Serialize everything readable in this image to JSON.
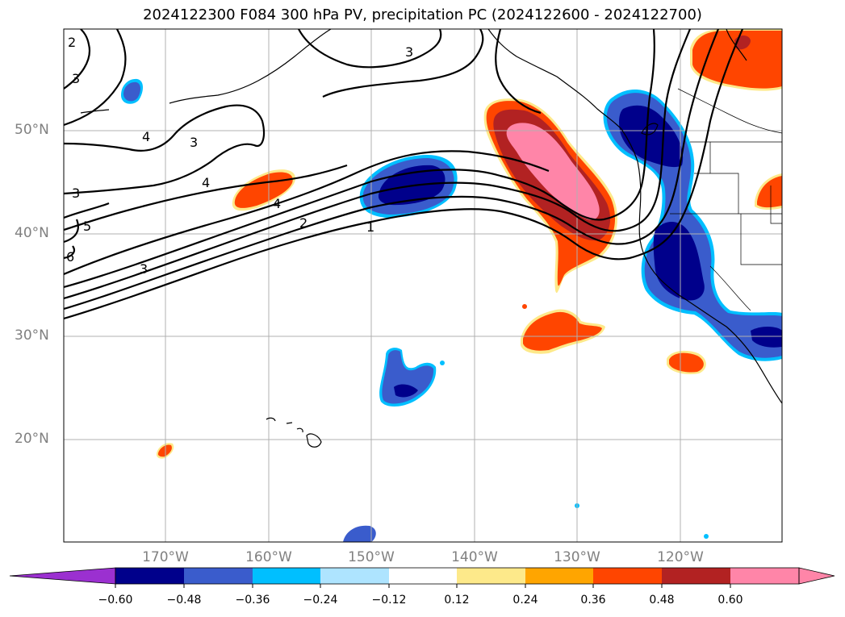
{
  "title": "2024122300 F084 300 hPa PV, precipitation PC (2024122600 - 2024122700)",
  "map": {
    "lat_labels": [
      {
        "text": "50°N",
        "value": 50
      },
      {
        "text": "40°N",
        "value": 40
      },
      {
        "text": "30°N",
        "value": 30
      },
      {
        "text": "20°N",
        "value": 20
      }
    ],
    "lon_labels": [
      {
        "text": "170°W",
        "value": -170
      },
      {
        "text": "160°W",
        "value": -160
      },
      {
        "text": "150°W",
        "value": -150
      },
      {
        "text": "140°W",
        "value": -140
      },
      {
        "text": "130°W",
        "value": -130
      },
      {
        "text": "120°W",
        "value": -120
      }
    ],
    "grid": true,
    "contour_labels": [
      "1",
      "2",
      "3",
      "3",
      "3",
      "3",
      "3",
      "4",
      "4",
      "4",
      "5",
      "6",
      "2",
      "3"
    ]
  },
  "colorbar": {
    "ticks": [
      "−0.60",
      "−0.48",
      "−0.36",
      "−0.24",
      "−0.12",
      "0.12",
      "0.24",
      "0.36",
      "0.48",
      "0.60"
    ],
    "colors": [
      "#9b30d0",
      "#00008b",
      "#3a5ccc",
      "#00bfff",
      "#aee4ff",
      "#ffffff",
      "#fde98a",
      "#ffa500",
      "#ff4500",
      "#b22222",
      "#ff85a8"
    ]
  }
}
